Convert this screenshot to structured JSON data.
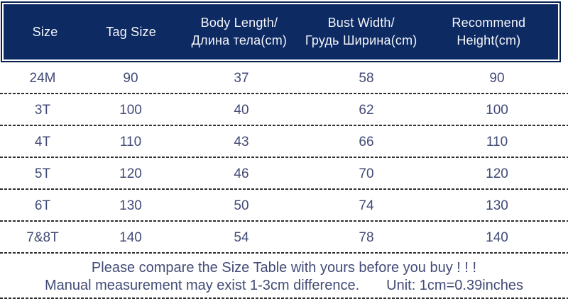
{
  "size_chart": {
    "columns": [
      {
        "lines": [
          "Size"
        ]
      },
      {
        "lines": [
          "Tag Size"
        ]
      },
      {
        "lines": [
          "Body Length/",
          "Длина тела(cm)"
        ]
      },
      {
        "lines": [
          "Bust Width/",
          "Грудь Ширина(cm)"
        ]
      },
      {
        "lines": [
          "Recommend",
          "Height(cm)"
        ]
      }
    ],
    "rows": [
      [
        "24M",
        "90",
        "37",
        "58",
        "90"
      ],
      [
        "3T",
        "100",
        "40",
        "62",
        "100"
      ],
      [
        "4T",
        "110",
        "43",
        "66",
        "110"
      ],
      [
        "5T",
        "120",
        "46",
        "70",
        "120"
      ],
      [
        "6T",
        "130",
        "50",
        "74",
        "130"
      ],
      [
        "7&8T",
        "140",
        "54",
        "78",
        "140"
      ]
    ]
  },
  "footer": {
    "line1": "Please compare the Size Table with yours before you buy ! ! !",
    "line2_left": "Manual measurement may exist 1-3cm difference.",
    "line2_right": "Unit: 1cm=0.39inches"
  },
  "colors": {
    "header_bg": "#0d2a63",
    "header_border": "#081f4e",
    "header_text": "#f4f6fa",
    "body_text": "#424b76",
    "dash": "#2f2f2f"
  }
}
